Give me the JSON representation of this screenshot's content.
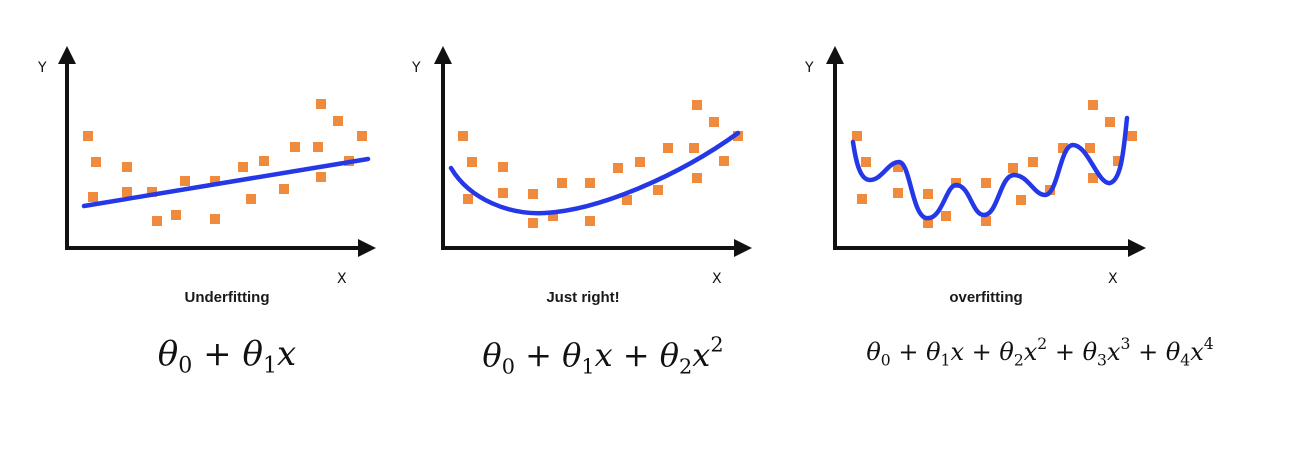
{
  "panels": [
    {
      "caption": "Underfitting",
      "y_axis_label": "Y",
      "x_axis_label": "X",
      "formula_terms": [
        {
          "sym": "θ",
          "sub": "0"
        },
        {
          "op": "+"
        },
        {
          "sym": "θ",
          "sub": "1",
          "var": "x"
        }
      ]
    },
    {
      "caption": "Just right!",
      "y_axis_label": "Y",
      "x_axis_label": "X",
      "formula_terms": [
        {
          "sym": "θ",
          "sub": "0"
        },
        {
          "op": "+"
        },
        {
          "sym": "θ",
          "sub": "1",
          "var": "x"
        },
        {
          "op": "+"
        },
        {
          "sym": "θ",
          "sub": "2",
          "var": "x",
          "pow": "2"
        }
      ]
    },
    {
      "caption": "overfitting",
      "y_axis_label": "Y",
      "x_axis_label": "X",
      "formula_terms": [
        {
          "sym": "θ",
          "sub": "0"
        },
        {
          "op": "+"
        },
        {
          "sym": "θ",
          "sub": "1",
          "var": "x"
        },
        {
          "op": "+"
        },
        {
          "sym": "θ",
          "sub": "2",
          "var": "x",
          "pow": "2"
        },
        {
          "op": "+"
        },
        {
          "sym": "θ",
          "sub": "3",
          "var": "x",
          "pow": "3"
        },
        {
          "op": "+"
        },
        {
          "sym": "θ",
          "sub": "4",
          "var": "x",
          "pow": "4"
        }
      ]
    }
  ],
  "colors": {
    "axis": "#111111",
    "points": "#f08a3c",
    "fit_curve": "#2438e8",
    "caption": "#1a1a1a"
  }
}
